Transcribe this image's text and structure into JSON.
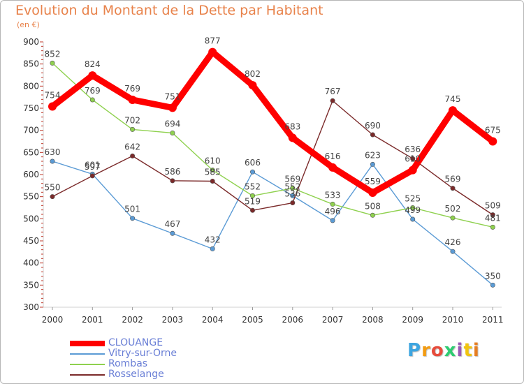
{
  "title": "Evolution du Montant de la Dette par Habitant",
  "subtitle": "(en €)",
  "chart_data": {
    "type": "line",
    "x": [
      "2000",
      "2001",
      "2002",
      "2003",
      "2004",
      "2005",
      "2006",
      "2007",
      "2008",
      "2009",
      "2010",
      "2011"
    ],
    "ylim": [
      300,
      900
    ],
    "yticks": [
      300,
      350,
      400,
      450,
      500,
      550,
      600,
      650,
      700,
      750,
      800,
      850,
      900
    ],
    "grid": false,
    "legend_position": "bottom-left",
    "series": [
      {
        "name": "CLOUANGE",
        "color": "#ff0000",
        "values": [
          754,
          824,
          769,
          751,
          877,
          802,
          683,
          616,
          559,
          610,
          745,
          675
        ],
        "labels": [
          "754",
          "824",
          "769",
          "751",
          "877",
          "802",
          "683",
          "616",
          "559",
          "610",
          "745",
          "675"
        ]
      },
      {
        "name": "Vitry-sur-Orne",
        "color": "#5b9bd5",
        "values": [
          630,
          601,
          501,
          467,
          432,
          606,
          552,
          496,
          623,
          499,
          426,
          350
        ],
        "labels": [
          "630",
          "601",
          "501",
          "467",
          "432",
          "606",
          "552",
          "496",
          "623",
          "499",
          "426",
          "350"
        ]
      },
      {
        "name": "Rombas",
        "color": "#8fd14f",
        "values": [
          852,
          769,
          702,
          694,
          610,
          552,
          569,
          533,
          508,
          525,
          502,
          481
        ],
        "labels": [
          "852",
          "769",
          "702",
          "694",
          "610",
          "552",
          "569",
          "533",
          "508",
          "525",
          "502",
          "481"
        ]
      },
      {
        "name": "Rosselange",
        "color": "#7b2a2a",
        "values": [
          550,
          597,
          642,
          586,
          585,
          519,
          536,
          767,
          690,
          636,
          569,
          509
        ],
        "labels": [
          "550",
          "597",
          "642",
          "586",
          "585",
          "519",
          "536",
          "767",
          "690",
          "636",
          "569",
          "509"
        ]
      }
    ]
  },
  "logo": {
    "letters": [
      "P",
      "r",
      "o",
      "x",
      "i",
      "t",
      "i"
    ],
    "colors": [
      "#3da5e0",
      "#f39c12",
      "#e74c3c",
      "#2ecc71",
      "#9b59b6",
      "#f1c40f",
      "#e67e22"
    ]
  }
}
